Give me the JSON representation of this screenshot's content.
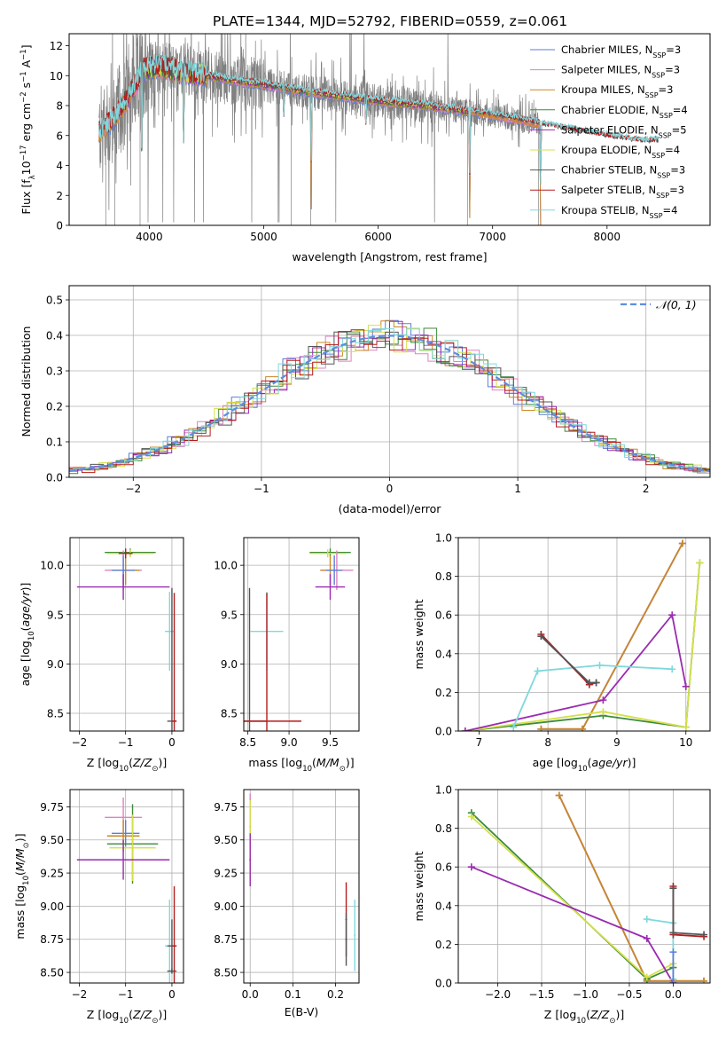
{
  "figure_title": "PLATE=1344, MJD=52792, FIBERID=0559, z=0.061",
  "colors": {
    "chabrier_miles": "#5b7fd6",
    "salpeter_miles": "#e082c0",
    "kroupa_miles": "#c8882a",
    "chabrier_elodie": "#3d8a3d",
    "salpeter_elodie": "#9a2bb0",
    "kroupa_elodie": "#d4e04a",
    "chabrier_stelib": "#555555",
    "salpeter_stelib": "#b51c1c",
    "kroupa_stelib": "#7fd8dc",
    "data": "#808080",
    "gauss": "#5b8ee0"
  },
  "chart_data": [
    {
      "id": "spectrum",
      "type": "line",
      "title": "PLATE=1344, MJD=52792, FIBERID=0559, z=0.061",
      "xlabel": "wavelength [Angstrom, rest frame]",
      "ylabel": "Flux [f_λ 10^-17 erg cm^-2 s^-1 A^-1]",
      "xlim": [
        3300,
        8900
      ],
      "ylim": [
        0,
        12.8
      ],
      "xticks": [
        4000,
        5000,
        6000,
        7000,
        8000
      ],
      "yticks": [
        0,
        2,
        4,
        6,
        8,
        10,
        12
      ],
      "legend_position": "top-right",
      "series": [
        {
          "name": "Chabrier MILES, N",
          "sub": "SSP",
          "suffix": "=3",
          "color": "chabrier_miles"
        },
        {
          "name": "Salpeter MILES, N",
          "sub": "SSP",
          "suffix": "=3",
          "color": "salpeter_miles"
        },
        {
          "name": "Kroupa MILES, N",
          "sub": "SSP",
          "suffix": "=3",
          "color": "kroupa_miles"
        },
        {
          "name": "Chabrier ELODIE, N",
          "sub": "SSP",
          "suffix": "=4",
          "color": "chabrier_elodie"
        },
        {
          "name": "Salpeter ELODIE, N",
          "sub": "SSP",
          "suffix": "=5",
          "color": "salpeter_elodie"
        },
        {
          "name": "Kroupa ELODIE, N",
          "sub": "SSP",
          "suffix": "=4",
          "color": "kroupa_elodie"
        },
        {
          "name": "Chabrier STELIB, N",
          "sub": "SSP",
          "suffix": "=3",
          "color": "chabrier_stelib"
        },
        {
          "name": "Salpeter STELIB, N",
          "sub": "SSP",
          "suffix": "=3",
          "color": "salpeter_stelib"
        },
        {
          "name": "Kroupa STELIB, N",
          "sub": "SSP",
          "suffix": "=4",
          "color": "kroupa_stelib"
        }
      ],
      "continuum": [
        [
          3560,
          6.2
        ],
        [
          3700,
          7.2
        ],
        [
          3850,
          9.0
        ],
        [
          3950,
          10.4
        ],
        [
          4100,
          10.6
        ],
        [
          4300,
          10.2
        ],
        [
          4500,
          10.0
        ],
        [
          4700,
          9.7
        ],
        [
          5000,
          9.4
        ],
        [
          5300,
          9.0
        ],
        [
          5600,
          8.7
        ],
        [
          6000,
          8.3
        ],
        [
          6400,
          8.0
        ],
        [
          6800,
          7.6
        ],
        [
          7200,
          7.1
        ],
        [
          7500,
          6.6
        ],
        [
          7800,
          6.2
        ],
        [
          8100,
          5.8
        ],
        [
          8300,
          5.6
        ]
      ],
      "dips": [
        [
          3934,
          3.5
        ],
        [
          4300,
          5.5
        ],
        [
          5175,
          7.0
        ],
        [
          5415,
          0.0
        ],
        [
          5893,
          6.5
        ],
        [
          6800,
          0.5
        ],
        [
          7420,
          0.0
        ]
      ]
    },
    {
      "id": "residuals",
      "type": "step",
      "xlabel": "(data-model)/error",
      "ylabel": "Normed distribution",
      "xlim": [
        -2.5,
        2.5
      ],
      "ylim": [
        0,
        0.54
      ],
      "xticks": [
        -2,
        -1,
        0,
        1,
        2
      ],
      "yticks": [
        0.0,
        0.1,
        0.2,
        0.3,
        0.4,
        0.5
      ],
      "legend": [
        {
          "label": "𝒩(0, 1)",
          "color": "gauss"
        }
      ],
      "legend_position": "top-right",
      "bin_width": 0.1
    },
    {
      "id": "age-vs-Z",
      "type": "errorbar",
      "xlabel": "Z [log10(Z/Z⊙)]",
      "ylabel": "age [log10(age/yr)]",
      "xlim": [
        -2.2,
        0.25
      ],
      "ylim": [
        8.32,
        10.28
      ],
      "xticks": [
        -2,
        -1,
        0
      ],
      "yticks": [
        8.5,
        9.0,
        9.5,
        10.0
      ],
      "points": [
        {
          "x": -0.9,
          "y": 10.13,
          "xerr": 0.55,
          "yerr": 0.04,
          "color": "chabrier_elodie"
        },
        {
          "x": -0.9,
          "y": 10.12,
          "xerr": 0.5,
          "yerr": 0.04,
          "color": "kroupa_elodie"
        },
        {
          "x": -1.05,
          "y": 9.95,
          "xerr": 0.4,
          "yerr": 0.2,
          "color": "salpeter_miles"
        },
        {
          "x": -1.0,
          "y": 9.95,
          "xerr": 0.3,
          "yerr": 0.15,
          "color": "kroupa_miles"
        },
        {
          "x": -1.05,
          "y": 9.95,
          "xerr": 0.25,
          "yerr": 0.15,
          "color": "chabrier_miles"
        },
        {
          "x": -1.0,
          "y": 10.12,
          "xerr": 0.15,
          "yerr": 0.05,
          "color": "salpeter_stelib"
        },
        {
          "x": -1.05,
          "y": 9.78,
          "xerr": 1.0,
          "yerr": 0.13,
          "color": "salpeter_elodie"
        },
        {
          "x": -0.05,
          "y": 9.33,
          "xerr": 0.1,
          "yerr": 0.4,
          "color": "kroupa_stelib"
        },
        {
          "x": 0.0,
          "y": 8.42,
          "xerr": 0.1,
          "yerr": 1.35,
          "color": "chabrier_stelib"
        },
        {
          "x": 0.05,
          "y": 8.42,
          "xerr": 0.05,
          "yerr": 1.3,
          "color": "salpeter_stelib"
        }
      ]
    },
    {
      "id": "age-vs-mass",
      "type": "errorbar",
      "xlabel": "mass [log10(M/M⊙)]",
      "ylabel": "",
      "xlim": [
        8.45,
        9.85
      ],
      "ylim": [
        8.32,
        10.28
      ],
      "xticks": [
        8.5,
        9.0,
        9.5
      ],
      "yticks": [
        8.5,
        9.0,
        9.5,
        10.0
      ],
      "points": [
        {
          "x": 9.5,
          "y": 10.13,
          "xerr": 0.25,
          "yerr": 0.04,
          "color": "chabrier_elodie"
        },
        {
          "x": 9.47,
          "y": 10.12,
          "xerr": 0.22,
          "yerr": 0.04,
          "color": "kroupa_elodie"
        },
        {
          "x": 9.58,
          "y": 9.95,
          "xerr": 0.2,
          "yerr": 0.2,
          "color": "salpeter_miles"
        },
        {
          "x": 9.5,
          "y": 9.95,
          "xerr": 0.12,
          "yerr": 0.15,
          "color": "kroupa_miles"
        },
        {
          "x": 9.55,
          "y": 9.95,
          "xerr": 0.1,
          "yerr": 0.15,
          "color": "chabrier_miles"
        },
        {
          "x": 9.5,
          "y": 9.78,
          "xerr": 0.18,
          "yerr": 0.13,
          "color": "salpeter_elodie"
        },
        {
          "x": 8.73,
          "y": 9.33,
          "xerr": 0.2,
          "yerr": 0.4,
          "color": "kroupa_stelib"
        },
        {
          "x": 8.52,
          "y": 8.42,
          "xerr": 0.2,
          "yerr": 1.35,
          "color": "chabrier_stelib"
        },
        {
          "x": 8.73,
          "y": 8.42,
          "xerr": 0.42,
          "yerr": 1.3,
          "color": "salpeter_stelib"
        }
      ]
    },
    {
      "id": "weight-vs-age",
      "type": "line",
      "xlabel": "age [log10(age/yr)]",
      "ylabel": "mass weight",
      "xlim": [
        6.7,
        10.35
      ],
      "ylim": [
        0,
        1
      ],
      "xticks": [
        7,
        8,
        9,
        10
      ],
      "yticks": [
        0.0,
        0.2,
        0.4,
        0.6,
        0.8,
        1.0
      ],
      "series": [
        {
          "color": "chabrier_miles",
          "points": [
            [
              7.9,
              0.01
            ],
            [
              8.5,
              0.01
            ],
            [
              9.95,
              0.97
            ]
          ]
        },
        {
          "color": "salpeter_miles",
          "points": [
            [
              7.9,
              0.01
            ],
            [
              8.5,
              0.01
            ],
            [
              9.95,
              0.97
            ]
          ]
        },
        {
          "color": "kroupa_miles",
          "points": [
            [
              7.9,
              0.01
            ],
            [
              8.5,
              0.01
            ],
            [
              9.95,
              0.97
            ]
          ]
        },
        {
          "color": "chabrier_elodie",
          "points": [
            [
              6.8,
              0.0
            ],
            [
              8.8,
              0.08
            ],
            [
              10.0,
              0.02
            ],
            [
              10.2,
              0.87
            ]
          ]
        },
        {
          "color": "kroupa_elodie",
          "points": [
            [
              6.8,
              0.0
            ],
            [
              8.8,
              0.1
            ],
            [
              10.0,
              0.02
            ],
            [
              10.2,
              0.87
            ]
          ]
        },
        {
          "color": "salpeter_elodie",
          "points": [
            [
              6.8,
              0.0
            ],
            [
              8.8,
              0.16
            ],
            [
              9.8,
              0.6
            ],
            [
              10.0,
              0.23
            ]
          ]
        },
        {
          "color": "kroupa_stelib",
          "points": [
            [
              7.5,
              0.02
            ],
            [
              7.85,
              0.31
            ],
            [
              8.75,
              0.34
            ],
            [
              9.8,
              0.32
            ]
          ]
        },
        {
          "color": "salpeter_stelib",
          "points": [
            [
              7.9,
              0.5
            ],
            [
              8.6,
              0.24
            ],
            [
              8.7,
              0.25
            ]
          ]
        },
        {
          "color": "chabrier_stelib",
          "points": [
            [
              7.9,
              0.49
            ],
            [
              8.6,
              0.25
            ],
            [
              8.7,
              0.25
            ]
          ]
        }
      ]
    },
    {
      "id": "mass-vs-Z",
      "type": "errorbar",
      "xlabel": "Z [log10(Z/Z⊙)]",
      "ylabel": "mass [log10(M/M⊙)]",
      "xlim": [
        -2.2,
        0.25
      ],
      "ylim": [
        8.42,
        9.88
      ],
      "xticks": [
        -2,
        -1,
        0
      ],
      "yticks": [
        8.5,
        8.75,
        9.0,
        9.25,
        9.5,
        9.75
      ],
      "points": [
        {
          "x": -1.0,
          "y": 9.55,
          "xerr": 0.3,
          "yerr": 0.1,
          "color": "chabrier_miles"
        },
        {
          "x": -1.05,
          "y": 9.67,
          "xerr": 0.4,
          "yerr": 0.15,
          "color": "salpeter_miles"
        },
        {
          "x": -1.05,
          "y": 9.53,
          "xerr": 0.35,
          "yerr": 0.12,
          "color": "kroupa_miles"
        },
        {
          "x": -0.85,
          "y": 9.47,
          "xerr": 0.55,
          "yerr": 0.3,
          "color": "chabrier_elodie"
        },
        {
          "x": -0.85,
          "y": 9.44,
          "xerr": 0.5,
          "yerr": 0.25,
          "color": "kroupa_elodie"
        },
        {
          "x": -1.05,
          "y": 9.35,
          "xerr": 1.0,
          "yerr": 0.15,
          "color": "salpeter_elodie"
        },
        {
          "x": -0.05,
          "y": 8.7,
          "xerr": 0.1,
          "yerr": 0.35,
          "color": "kroupa_stelib"
        },
        {
          "x": 0.0,
          "y": 8.7,
          "xerr": 0.1,
          "yerr": 0.2,
          "color": "chabrier_stelib"
        },
        {
          "x": 0.05,
          "y": 8.7,
          "xerr": 0.05,
          "yerr": 0.45,
          "color": "salpeter_stelib"
        },
        {
          "x": 0.0,
          "y": 8.51,
          "xerr": 0.1,
          "yerr": 0.02,
          "color": "chabrier_stelib"
        }
      ]
    },
    {
      "id": "mass-vs-ebv",
      "type": "errorbar",
      "xlabel": "E(B-V)",
      "ylabel": "",
      "xlim": [
        -0.015,
        0.255
      ],
      "ylim": [
        8.42,
        9.88
      ],
      "xticks": [
        0.0,
        0.1,
        0.2
      ],
      "yticks": [
        8.5,
        8.75,
        9.0,
        9.25,
        9.5,
        9.75
      ],
      "points": [
        {
          "x": 0.0,
          "y": 9.6,
          "xerr": 0.002,
          "yerr": 0.25,
          "color": "salpeter_miles"
        },
        {
          "x": 0.0,
          "y": 9.5,
          "xerr": 0.002,
          "yerr": 0.3,
          "color": "kroupa_elodie"
        },
        {
          "x": 0.0,
          "y": 9.35,
          "xerr": 0.002,
          "yerr": 0.2,
          "color": "salpeter_elodie"
        },
        {
          "x": 0.225,
          "y": 8.9,
          "xerr": 0.002,
          "yerr": 0.28,
          "color": "salpeter_stelib"
        },
        {
          "x": 0.225,
          "y": 8.75,
          "xerr": 0.002,
          "yerr": 0.2,
          "color": "chabrier_stelib"
        },
        {
          "x": 0.245,
          "y": 8.78,
          "xerr": 0.002,
          "yerr": 0.27,
          "color": "kroupa_stelib"
        }
      ]
    },
    {
      "id": "weight-vs-Z",
      "type": "line",
      "xlabel": "Z [log10(Z/Z⊙)]",
      "ylabel": "mass weight",
      "xlim": [
        -2.45,
        0.42
      ],
      "ylim": [
        0,
        1
      ],
      "xticks": [
        -2.0,
        -1.5,
        -1.0,
        -0.5,
        0.0
      ],
      "yticks": [
        0.0,
        0.2,
        0.4,
        0.6,
        0.8,
        1.0
      ],
      "series": [
        {
          "color": "chabrier_miles",
          "points": [
            [
              -1.3,
              0.97
            ],
            [
              -0.3,
              0.01
            ],
            [
              0.35,
              0.01
            ]
          ]
        },
        {
          "color": "salpeter_miles",
          "points": [
            [
              -1.3,
              0.97
            ],
            [
              -0.3,
              0.01
            ],
            [
              0.35,
              0.01
            ]
          ]
        },
        {
          "color": "kroupa_miles",
          "points": [
            [
              -1.3,
              0.97
            ],
            [
              -0.3,
              0.01
            ],
            [
              0.35,
              0.01
            ]
          ]
        },
        {
          "color": "chabrier_elodie",
          "points": [
            [
              -2.3,
              0.88
            ],
            [
              -0.3,
              0.02
            ],
            [
              0.0,
              0.08
            ]
          ]
        },
        {
          "color": "kroupa_elodie",
          "points": [
            [
              -2.3,
              0.86
            ],
            [
              -0.3,
              0.03
            ],
            [
              0.0,
              0.1
            ]
          ]
        },
        {
          "color": "salpeter_elodie",
          "points": [
            [
              -2.3,
              0.6
            ],
            [
              -0.3,
              0.23
            ],
            [
              0.0,
              0.0
            ]
          ]
        },
        {
          "color": "kroupa_stelib",
          "points": [
            [
              -0.3,
              0.33
            ],
            [
              0.0,
              0.31
            ],
            [
              0.0,
              0.02
            ]
          ]
        },
        {
          "color": "chabrier_miles",
          "points": [
            [
              0.0,
              0.16
            ],
            [
              0.0,
              0.0
            ]
          ]
        },
        {
          "color": "salpeter_stelib",
          "points": [
            [
              0.0,
              0.5
            ],
            [
              0.0,
              0.25
            ],
            [
              0.35,
              0.24
            ]
          ]
        },
        {
          "color": "chabrier_stelib",
          "points": [
            [
              0.0,
              0.49
            ],
            [
              0.0,
              0.26
            ],
            [
              0.35,
              0.25
            ]
          ]
        }
      ]
    }
  ]
}
